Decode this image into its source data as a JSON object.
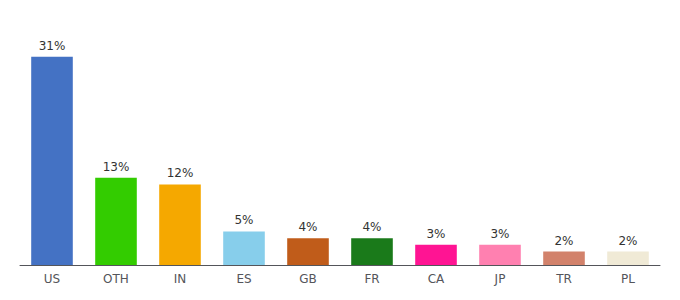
{
  "chart_data": {
    "type": "bar",
    "categories": [
      "US",
      "OTH",
      "IN",
      "ES",
      "GB",
      "FR",
      "CA",
      "JP",
      "TR",
      "PL"
    ],
    "values": [
      31,
      13,
      12,
      5,
      4,
      4,
      3,
      3,
      2,
      2
    ],
    "value_labels": [
      "31%",
      "13%",
      "12%",
      "5%",
      "4%",
      "4%",
      "3%",
      "3%",
      "2%",
      "2%"
    ],
    "colors": [
      "#4472c4",
      "#33cc00",
      "#f5a800",
      "#87ceeb",
      "#c05c1a",
      "#1a7a1a",
      "#ff1493",
      "#ff80b0",
      "#d2826b",
      "#f0ead6"
    ],
    "ylim": [
      0,
      35
    ],
    "grid": false,
    "data_labels": true,
    "tick_labels": "x"
  }
}
